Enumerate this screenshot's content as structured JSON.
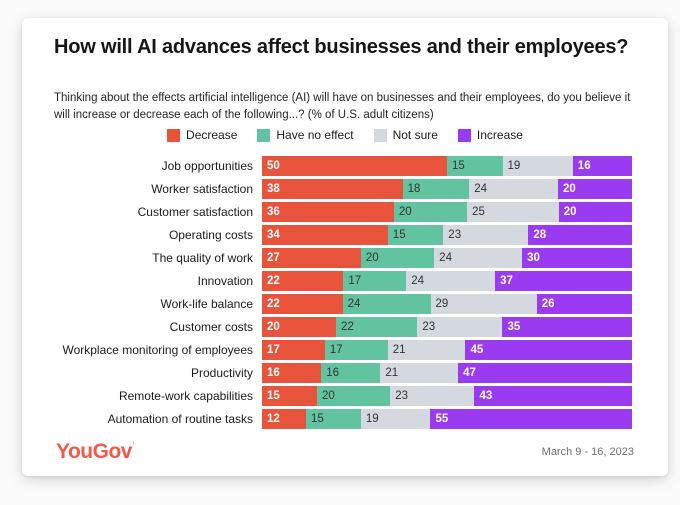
{
  "card": {
    "title": "How will AI advances affect businesses and their employees?",
    "subtitle": "Thinking about the effects artificial intelligence (AI) will have on businesses and their employees, do you believe it will increase or decrease each of the following...? (% of U.S. adult citizens)"
  },
  "chart_data": {
    "type": "bar",
    "orientation": "horizontal",
    "stacked": true,
    "normalized_to_100": true,
    "unit": "%",
    "grid": false,
    "legend_position": "top",
    "value_labels": "inside-left",
    "categories": [
      "Job opportunities",
      "Worker satisfaction",
      "Customer satisfaction",
      "Operating costs",
      "The quality of work",
      "Innovation",
      "Work-life balance",
      "Customer costs",
      "Workplace monitoring of employees",
      "Productivity",
      "Remote-work capabilities",
      "Automation of routine tasks"
    ],
    "series": [
      {
        "key": "decrease",
        "name": "Decrease",
        "color": "#E8533C",
        "value_label_color": "#FFFFFF",
        "value_label_weight": "700",
        "values": [
          50,
          38,
          36,
          34,
          27,
          22,
          22,
          20,
          17,
          16,
          15,
          12
        ]
      },
      {
        "key": "have-no-effect",
        "name": "Have no effect",
        "color": "#62C3A0",
        "value_label_color": "#333333",
        "value_label_weight": "400",
        "values": [
          15,
          18,
          20,
          15,
          20,
          17,
          24,
          22,
          17,
          16,
          20,
          15
        ]
      },
      {
        "key": "not-sure",
        "name": "Not sure",
        "color": "#D4D8DF",
        "value_label_color": "#333333",
        "value_label_weight": "400",
        "values": [
          19,
          24,
          25,
          23,
          24,
          24,
          29,
          23,
          21,
          21,
          23,
          19
        ]
      },
      {
        "key": "increase",
        "name": "Increase",
        "color": "#9A3BF2",
        "value_label_color": "#FFFFFF",
        "value_label_weight": "700",
        "values": [
          16,
          20,
          20,
          28,
          30,
          37,
          26,
          35,
          45,
          47,
          43,
          55
        ]
      }
    ]
  },
  "footer": {
    "logo_text": "YouGov",
    "logo_tick": "'",
    "logo_color": "#F2594B",
    "date_range": "March 9 - 16, 2023"
  }
}
